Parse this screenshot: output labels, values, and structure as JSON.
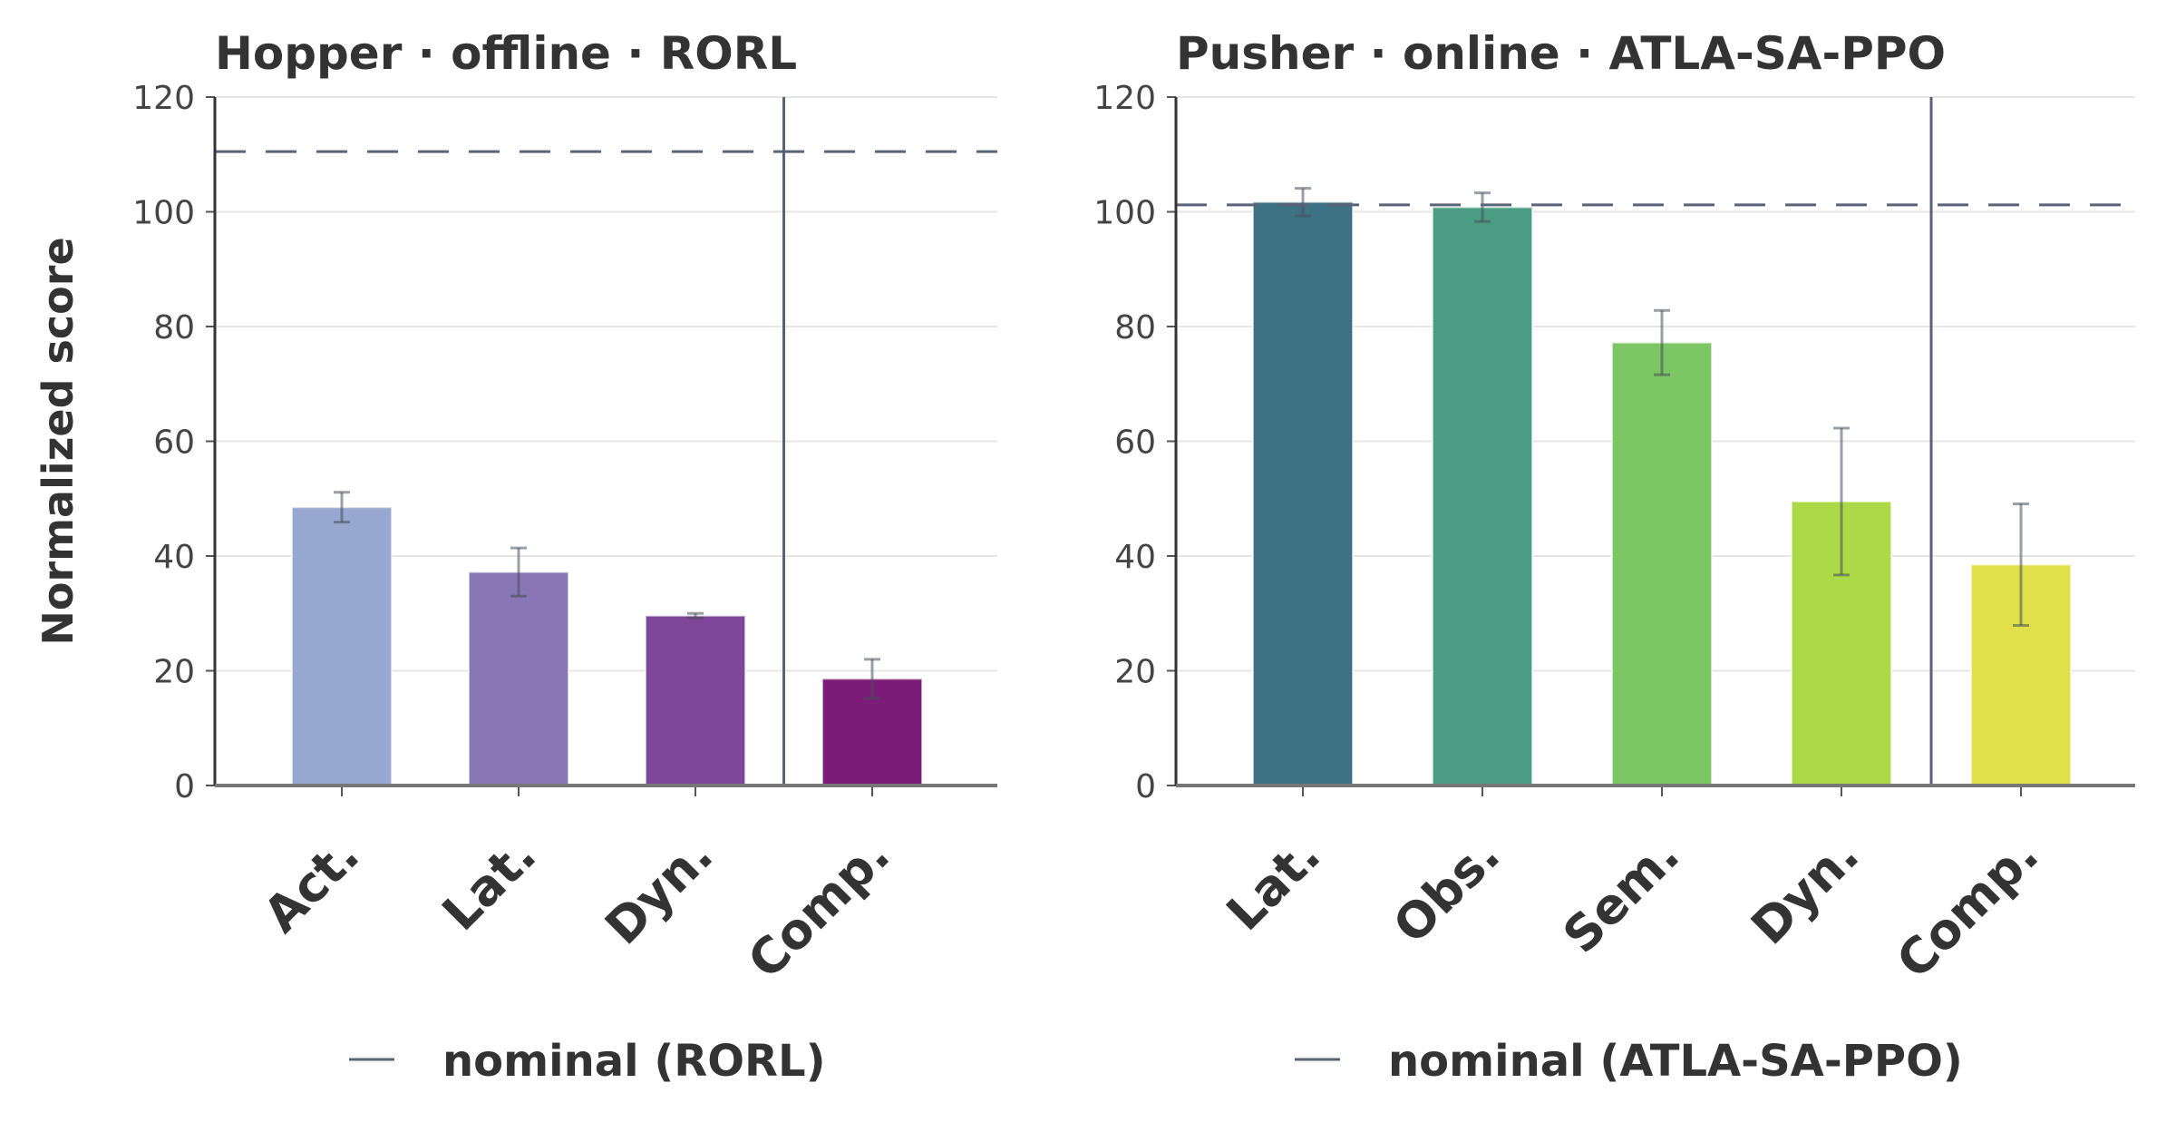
{
  "chart_data": [
    {
      "type": "bar",
      "title": "Hopper · offline · RORL",
      "ylabel": "Normalized score",
      "xlabel": "",
      "ylim": [
        0,
        120
      ],
      "yticks": [
        0,
        20,
        40,
        60,
        80,
        100,
        120
      ],
      "grid": "horizontal",
      "categories": [
        "Act.",
        "Lat.",
        "Dyn.",
        "Comp."
      ],
      "values": [
        48.5,
        37.2,
        29.6,
        18.6
      ],
      "errors": [
        2.6,
        4.2,
        0.4,
        3.4
      ],
      "colors": [
        "#97a8d0",
        "#8877b4",
        "#7e4798",
        "#7b1c78"
      ],
      "separator_after_index": 2,
      "reference_line": {
        "label": "nominal (RORL)",
        "value": 110.5,
        "style": "dashed",
        "color": "#5a6275"
      },
      "legend": {
        "placement": "bottom-center",
        "label": "nominal (RORL)"
      }
    },
    {
      "type": "bar",
      "title": "Pusher · online · ATLA-SA-PPO",
      "ylabel": "",
      "xlabel": "",
      "ylim": [
        0,
        120
      ],
      "yticks": [
        0,
        20,
        40,
        60,
        80,
        100,
        120
      ],
      "grid": "horizontal",
      "categories": [
        "Lat.",
        "Obs.",
        "Sem.",
        "Dyn.",
        "Comp."
      ],
      "values": [
        101.7,
        100.8,
        77.2,
        49.5,
        38.5
      ],
      "errors": [
        2.4,
        2.5,
        5.6,
        12.8,
        10.6
      ],
      "colors": [
        "#3d7184",
        "#4a9d83",
        "#7cc665",
        "#acd948",
        "#e0e04a"
      ],
      "separator_after_index": 3,
      "reference_line": {
        "label": "nominal (ATLA-SA-PPO)",
        "value": 101.2,
        "style": "dashed",
        "color": "#5a6275"
      },
      "legend": {
        "placement": "bottom-center",
        "label": "nominal (ATLA-SA-PPO)"
      }
    }
  ]
}
